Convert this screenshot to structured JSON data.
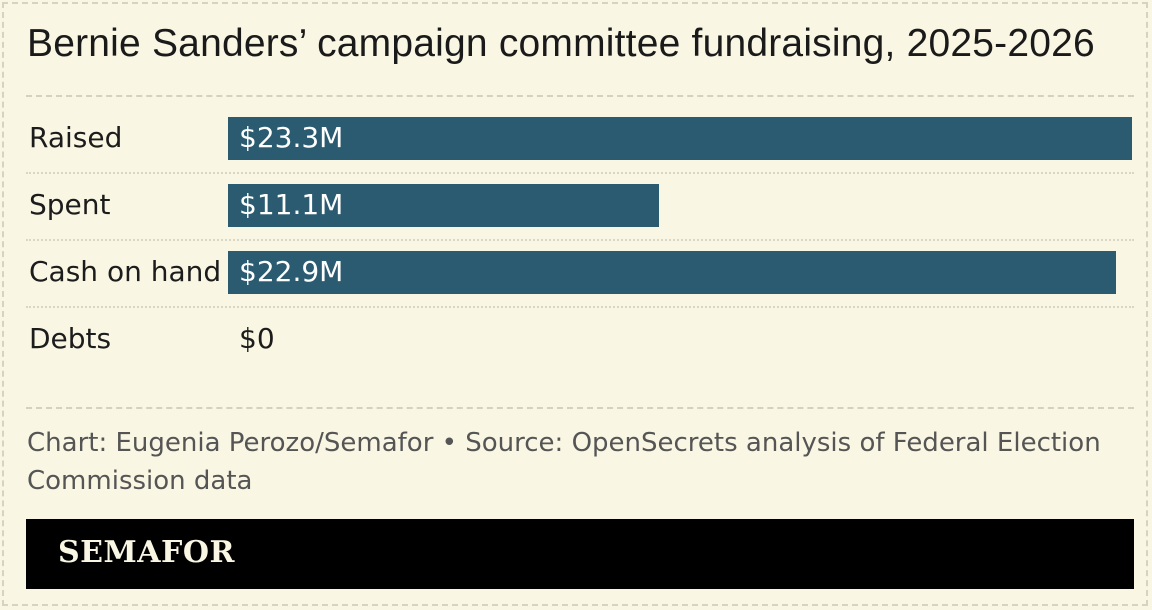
{
  "chart_data": {
    "type": "bar",
    "orientation": "horizontal",
    "title": "Bernie Sanders’ campaign committee fundraising, 2025-2026",
    "categories": [
      "Raised",
      "Spent",
      "Cash on hand",
      "Debts"
    ],
    "values": [
      23.3,
      11.1,
      22.9,
      0
    ],
    "value_labels": [
      "$23.3M",
      "$11.1M",
      "$22.9M",
      "$0"
    ],
    "unit": "M",
    "xlim": [
      0,
      23.3
    ],
    "color": "#2a5b70",
    "grid": false,
    "legend": "none"
  },
  "footer": {
    "credit": "Chart: Eugenia Perozo/Semafor • Source: OpenSecrets analysis of Federal Election Commission data"
  },
  "brand": {
    "name": "SEMAFOR"
  },
  "colors": {
    "background": "#f9f6e3",
    "bar": "#2a5b70",
    "brand_bar": "#000000"
  }
}
